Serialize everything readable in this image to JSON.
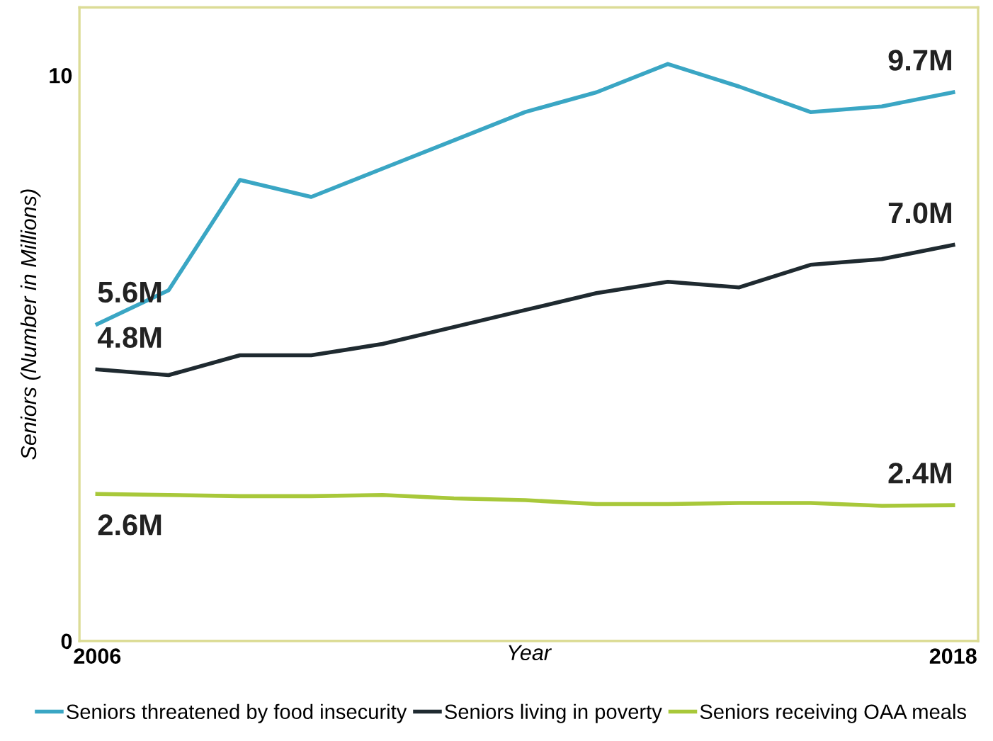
{
  "chart_data": {
    "type": "line",
    "xlabel": "Year",
    "ylabel": "Seniors (Number in Millions)",
    "x": [
      2006,
      2007,
      2008,
      2009,
      2010,
      2011,
      2012,
      2013,
      2014,
      2015,
      2016,
      2017,
      2018
    ],
    "xlim": [
      2005.75,
      2018.35
    ],
    "xticks": [
      2006,
      2018
    ],
    "ylim": [
      0,
      11.2
    ],
    "yticks": [
      0,
      10
    ],
    "grid": false,
    "legend": "bottom",
    "marker": "none",
    "line_style": "solid",
    "series": [
      {
        "name": "Seniors threatened by food insecurity",
        "color": "#3aa6c4",
        "values": [
          5.6,
          6.2,
          8.15,
          7.85,
          8.35,
          8.85,
          9.35,
          9.7,
          10.2,
          9.8,
          9.35,
          9.45,
          9.7
        ],
        "value_labels": [
          "5.6M",
          null,
          null,
          null,
          null,
          null,
          null,
          null,
          null,
          null,
          null,
          null,
          "9.7M"
        ]
      },
      {
        "name": "Seniors living in poverty",
        "color": "#1f2a30",
        "values": [
          4.8,
          4.7,
          5.05,
          5.05,
          5.25,
          5.55,
          5.85,
          6.15,
          6.35,
          6.25,
          6.65,
          6.75,
          7.0
        ],
        "value_labels": [
          "4.8M",
          null,
          null,
          null,
          null,
          null,
          null,
          null,
          null,
          null,
          null,
          null,
          "7.0M"
        ]
      },
      {
        "name": "Seniors receiving OAA meals",
        "color": "#a8c83a",
        "values": [
          2.6,
          2.58,
          2.56,
          2.56,
          2.58,
          2.52,
          2.49,
          2.42,
          2.42,
          2.44,
          2.44,
          2.39,
          2.4
        ],
        "value_labels": [
          "2.6M",
          null,
          null,
          null,
          null,
          null,
          null,
          null,
          null,
          null,
          null,
          null,
          "2.4M"
        ]
      }
    ]
  }
}
